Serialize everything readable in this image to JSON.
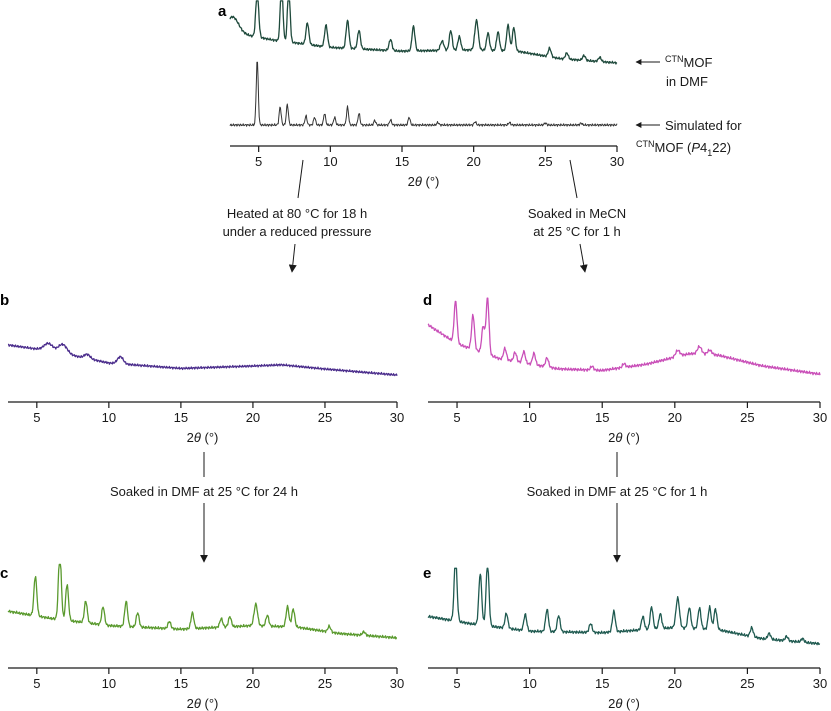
{
  "chart_data": [
    {
      "panel": "a",
      "type": "line",
      "xlabel": "2θ (°)",
      "xlim": [
        3,
        30
      ],
      "xticks": [
        5,
        10,
        15,
        20,
        25,
        30
      ],
      "series": [
        {
          "name": "CTNMOF in DMF",
          "label_sup": "CTN",
          "label_main": "MOF",
          "label_line2": "in DMF",
          "color": "#1f4a3c",
          "baseline": [
            [
              3.0,
              0.55
            ],
            [
              6,
              0.42
            ],
            [
              10,
              0.3
            ],
            [
              15,
              0.24
            ],
            [
              20,
              0.26
            ],
            [
              23,
              0.24
            ],
            [
              26,
              0.12
            ],
            [
              30,
              0.05
            ]
          ],
          "peaks": [
            [
              3.2,
              0.25,
              0.4
            ],
            [
              4.9,
              0.75,
              0.1
            ],
            [
              6.6,
              1.0,
              0.09
            ],
            [
              7.1,
              0.92,
              0.09
            ],
            [
              8.4,
              0.35,
              0.1
            ],
            [
              9.7,
              0.35,
              0.1
            ],
            [
              11.2,
              0.45,
              0.1
            ],
            [
              12.0,
              0.3,
              0.1
            ],
            [
              14.2,
              0.18,
              0.1
            ],
            [
              15.8,
              0.4,
              0.1
            ],
            [
              17.8,
              0.15,
              0.12
            ],
            [
              18.4,
              0.32,
              0.1
            ],
            [
              19.0,
              0.22,
              0.1
            ],
            [
              20.2,
              0.48,
              0.12
            ],
            [
              21.0,
              0.28,
              0.1
            ],
            [
              21.7,
              0.3,
              0.1
            ],
            [
              22.4,
              0.42,
              0.1
            ],
            [
              22.8,
              0.38,
              0.1
            ],
            [
              25.3,
              0.14,
              0.1
            ],
            [
              26.5,
              0.1,
              0.1
            ],
            [
              27.7,
              0.08,
              0.1
            ],
            [
              28.8,
              0.07,
              0.1
            ]
          ]
        },
        {
          "name": "Simulated for CTNMOF (P4122)",
          "label_line1": "Simulated for",
          "label_sup": "CTN",
          "label_main": "MOF (",
          "label_italic": "P",
          "label_sub_char": "4",
          "label_sub": "1",
          "label_end": "22)",
          "color": "#333333",
          "baseline": [
            [
              3.0,
              0.0
            ],
            [
              30,
              0.0
            ]
          ],
          "peaks": [
            [
              4.9,
              1.0,
              0.07
            ],
            [
              6.5,
              0.28,
              0.07
            ],
            [
              7.0,
              0.32,
              0.07
            ],
            [
              8.3,
              0.14,
              0.07
            ],
            [
              8.9,
              0.12,
              0.07
            ],
            [
              9.6,
              0.18,
              0.07
            ],
            [
              10.3,
              0.12,
              0.07
            ],
            [
              11.2,
              0.28,
              0.07
            ],
            [
              12.0,
              0.18,
              0.07
            ],
            [
              13.1,
              0.07,
              0.07
            ],
            [
              14.2,
              0.08,
              0.07
            ],
            [
              15.5,
              0.12,
              0.07
            ],
            [
              17.5,
              0.04,
              0.07
            ],
            [
              20.1,
              0.05,
              0.07
            ],
            [
              22.5,
              0.04,
              0.07
            ],
            [
              25.0,
              0.03,
              0.07
            ],
            [
              27.5,
              0.03,
              0.07
            ]
          ]
        }
      ]
    },
    {
      "panel": "b",
      "type": "line",
      "xlabel": "2θ (°)",
      "xlim": [
        3,
        30
      ],
      "xticks": [
        5,
        10,
        15,
        20,
        25,
        30
      ],
      "series": [
        {
          "name": "",
          "color": "#4b2d8c",
          "baseline": [
            [
              3.0,
              0.55
            ],
            [
              6,
              0.45
            ],
            [
              10,
              0.25
            ],
            [
              15,
              0.16
            ],
            [
              20,
              0.2
            ],
            [
              22,
              0.22
            ],
            [
              25,
              0.15
            ],
            [
              30,
              0.05
            ]
          ],
          "peaks": [
            [
              5.8,
              0.12,
              0.3
            ],
            [
              6.8,
              0.15,
              0.3
            ],
            [
              8.5,
              0.07,
              0.2
            ],
            [
              10.8,
              0.12,
              0.2
            ]
          ]
        }
      ]
    },
    {
      "panel": "c",
      "type": "line",
      "xlabel": "2θ (°)",
      "xlim": [
        3,
        30
      ],
      "xticks": [
        5,
        10,
        15,
        20,
        25,
        30
      ],
      "series": [
        {
          "name": "",
          "color": "#5a9a2e",
          "baseline": [
            [
              3.0,
              0.4
            ],
            [
              6,
              0.3
            ],
            [
              10,
              0.2
            ],
            [
              15,
              0.15
            ],
            [
              20,
              0.2
            ],
            [
              23,
              0.18
            ],
            [
              26,
              0.09
            ],
            [
              30,
              0.03
            ]
          ],
          "peaks": [
            [
              4.9,
              0.55,
              0.1
            ],
            [
              6.6,
              0.95,
              0.1
            ],
            [
              7.1,
              0.5,
              0.1
            ],
            [
              8.4,
              0.3,
              0.1
            ],
            [
              9.6,
              0.25,
              0.1
            ],
            [
              11.2,
              0.35,
              0.1
            ],
            [
              12.0,
              0.2,
              0.1
            ],
            [
              14.2,
              0.1,
              0.1
            ],
            [
              15.8,
              0.22,
              0.1
            ],
            [
              17.8,
              0.12,
              0.1
            ],
            [
              18.4,
              0.14,
              0.1
            ],
            [
              20.2,
              0.3,
              0.12
            ],
            [
              21.0,
              0.15,
              0.1
            ],
            [
              22.4,
              0.28,
              0.1
            ],
            [
              22.8,
              0.25,
              0.1
            ],
            [
              25.3,
              0.08,
              0.1
            ],
            [
              27.7,
              0.05,
              0.1
            ]
          ]
        }
      ]
    },
    {
      "panel": "d",
      "type": "line",
      "xlabel": "2θ (°)",
      "xlim": [
        3,
        30
      ],
      "xticks": [
        5,
        10,
        15,
        20,
        25,
        30
      ],
      "series": [
        {
          "name": "",
          "color": "#c94fb8",
          "baseline": [
            [
              3.0,
              0.7
            ],
            [
              5,
              0.45
            ],
            [
              8,
              0.25
            ],
            [
              12,
              0.12
            ],
            [
              15,
              0.1
            ],
            [
              18,
              0.18
            ],
            [
              21,
              0.32
            ],
            [
              23,
              0.3
            ],
            [
              26,
              0.16
            ],
            [
              30,
              0.05
            ]
          ],
          "peaks": [
            [
              4.9,
              0.55,
              0.1
            ],
            [
              6.1,
              0.45,
              0.1
            ],
            [
              6.8,
              0.35,
              0.1
            ],
            [
              7.1,
              0.75,
              0.1
            ],
            [
              8.3,
              0.15,
              0.1
            ],
            [
              9.0,
              0.12,
              0.1
            ],
            [
              9.6,
              0.15,
              0.1
            ],
            [
              10.3,
              0.15,
              0.1
            ],
            [
              11.2,
              0.12,
              0.1
            ],
            [
              14.3,
              0.05,
              0.1
            ],
            [
              16.5,
              0.05,
              0.1
            ],
            [
              20.2,
              0.08,
              0.15
            ],
            [
              21.7,
              0.1,
              0.15
            ],
            [
              22.4,
              0.06,
              0.15
            ]
          ]
        }
      ]
    },
    {
      "panel": "e",
      "type": "line",
      "xlabel": "2θ (°)",
      "xlim": [
        3,
        30
      ],
      "xticks": [
        5,
        10,
        15,
        20,
        25,
        30
      ],
      "series": [
        {
          "name": "",
          "color": "#1f5a50",
          "baseline": [
            [
              3.0,
              0.4
            ],
            [
              6,
              0.3
            ],
            [
              10,
              0.2
            ],
            [
              15,
              0.18
            ],
            [
              20,
              0.25
            ],
            [
              23,
              0.22
            ],
            [
              26,
              0.1
            ],
            [
              30,
              0.03
            ]
          ],
          "peaks": [
            [
              4.9,
              0.85,
              0.1
            ],
            [
              6.6,
              0.7,
              0.1
            ],
            [
              7.1,
              0.85,
              0.1
            ],
            [
              8.4,
              0.2,
              0.1
            ],
            [
              9.7,
              0.22,
              0.1
            ],
            [
              11.2,
              0.3,
              0.1
            ],
            [
              12.0,
              0.22,
              0.1
            ],
            [
              14.2,
              0.12,
              0.1
            ],
            [
              15.8,
              0.28,
              0.1
            ],
            [
              17.8,
              0.18,
              0.1
            ],
            [
              18.4,
              0.3,
              0.1
            ],
            [
              19.0,
              0.2,
              0.1
            ],
            [
              20.2,
              0.4,
              0.12
            ],
            [
              21.0,
              0.28,
              0.1
            ],
            [
              21.7,
              0.28,
              0.1
            ],
            [
              22.4,
              0.3,
              0.1
            ],
            [
              22.8,
              0.28,
              0.1
            ],
            [
              25.3,
              0.12,
              0.1
            ],
            [
              26.5,
              0.08,
              0.1
            ],
            [
              27.7,
              0.06,
              0.1
            ],
            [
              28.8,
              0.05,
              0.1
            ]
          ]
        }
      ]
    }
  ],
  "steps": {
    "a_to_b_line1": "Heated at 80 °C for 18 h",
    "a_to_b_line2": "under a reduced pressure",
    "a_to_d_line1": "Soaked in MeCN",
    "a_to_d_line2": "at 25 °C for 1 h",
    "b_to_c": "Soaked in DMF at 25 °C for 24 h",
    "d_to_e": "Soaked in DMF at 25 °C for 1 h"
  },
  "xlabel_main": "2",
  "xlabel_theta": "θ",
  "xlabel_unit": " (°)",
  "colors": {
    "axis": "#1a1a1a",
    "arrow": "#1a1a1a"
  }
}
